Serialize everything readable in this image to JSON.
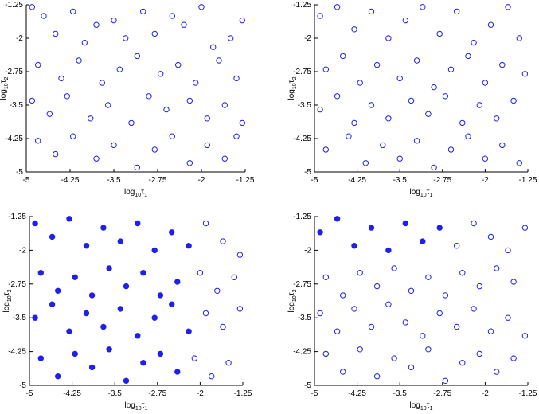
{
  "palette": {
    "marker": "#1f1ff0",
    "axis": "#000000"
  },
  "chart_data": [
    {
      "type": "scatter",
      "xlabel": "log10τ1",
      "ylabel": "log10τ2",
      "xlim": [
        -5,
        -1.25
      ],
      "ylim": [
        -5,
        -1.25
      ],
      "xticks": [
        "-5",
        "-4.25",
        "-3.5",
        "-2.75",
        "-2",
        "-1.25"
      ],
      "yticks": [
        "-5",
        "-4.25",
        "-3.5",
        "-2.75",
        "-2",
        "-1.25"
      ],
      "marker": "hollow circle",
      "points": [
        [
          -4.9,
          -1.3
        ],
        [
          -4.7,
          -1.5
        ],
        [
          -4.5,
          -1.9
        ],
        [
          -4.2,
          -1.4
        ],
        [
          -4.0,
          -2.1
        ],
        [
          -3.8,
          -1.7
        ],
        [
          -3.5,
          -1.6
        ],
        [
          -3.3,
          -2.0
        ],
        [
          -3.0,
          -1.4
        ],
        [
          -2.8,
          -1.9
        ],
        [
          -2.5,
          -1.5
        ],
        [
          -2.3,
          -1.7
        ],
        [
          -2.0,
          -1.3
        ],
        [
          -1.8,
          -2.2
        ],
        [
          -1.5,
          -2.0
        ],
        [
          -1.3,
          -1.6
        ],
        [
          -4.8,
          -2.6
        ],
        [
          -4.4,
          -2.9
        ],
        [
          -4.1,
          -2.5
        ],
        [
          -3.7,
          -3.0
        ],
        [
          -3.4,
          -2.7
        ],
        [
          -3.1,
          -2.4
        ],
        [
          -2.7,
          -2.8
        ],
        [
          -2.4,
          -2.6
        ],
        [
          -2.1,
          -3.0
        ],
        [
          -1.7,
          -2.5
        ],
        [
          -1.4,
          -2.9
        ],
        [
          -4.9,
          -3.4
        ],
        [
          -4.6,
          -3.7
        ],
        [
          -4.3,
          -3.3
        ],
        [
          -3.9,
          -3.8
        ],
        [
          -3.6,
          -3.5
        ],
        [
          -3.2,
          -3.9
        ],
        [
          -2.9,
          -3.3
        ],
        [
          -2.6,
          -3.6
        ],
        [
          -2.2,
          -3.4
        ],
        [
          -1.9,
          -3.8
        ],
        [
          -1.6,
          -3.5
        ],
        [
          -1.3,
          -3.9
        ],
        [
          -4.8,
          -4.3
        ],
        [
          -4.5,
          -4.6
        ],
        [
          -4.2,
          -4.2
        ],
        [
          -3.8,
          -4.7
        ],
        [
          -3.5,
          -4.4
        ],
        [
          -3.1,
          -4.9
        ],
        [
          -2.8,
          -4.5
        ],
        [
          -2.5,
          -4.2
        ],
        [
          -2.2,
          -4.8
        ],
        [
          -1.9,
          -4.4
        ],
        [
          -1.6,
          -4.7
        ],
        [
          -1.4,
          -4.2
        ]
      ]
    },
    {
      "type": "scatter",
      "xlabel": "log10τ1",
      "ylabel": "log10τ2",
      "xlim": [
        -5,
        -1.25
      ],
      "ylim": [
        -5,
        -1.25
      ],
      "xticks": [
        "-5",
        "-4.25",
        "-3.5",
        "-2.75",
        "-2",
        "-1.25"
      ],
      "yticks": [
        "-5",
        "-4.25",
        "-3.5",
        "-2.75",
        "-2",
        "-1.25"
      ],
      "marker": "hollow circle",
      "points": [
        [
          -4.9,
          -1.5
        ],
        [
          -4.6,
          -1.3
        ],
        [
          -4.3,
          -1.8
        ],
        [
          -4.0,
          -1.4
        ],
        [
          -3.7,
          -2.0
        ],
        [
          -3.4,
          -1.6
        ],
        [
          -3.1,
          -1.3
        ],
        [
          -2.8,
          -1.9
        ],
        [
          -2.5,
          -1.4
        ],
        [
          -2.2,
          -2.1
        ],
        [
          -1.9,
          -1.7
        ],
        [
          -1.6,
          -1.3
        ],
        [
          -1.4,
          -2.0
        ],
        [
          -4.8,
          -2.7
        ],
        [
          -4.5,
          -2.4
        ],
        [
          -4.2,
          -3.0
        ],
        [
          -3.9,
          -2.6
        ],
        [
          -3.5,
          -2.9
        ],
        [
          -3.2,
          -2.5
        ],
        [
          -2.9,
          -3.1
        ],
        [
          -2.6,
          -2.7
        ],
        [
          -2.3,
          -2.4
        ],
        [
          -2.0,
          -3.0
        ],
        [
          -1.7,
          -2.6
        ],
        [
          -1.3,
          -2.8
        ],
        [
          -4.9,
          -3.6
        ],
        [
          -4.6,
          -3.3
        ],
        [
          -4.3,
          -3.9
        ],
        [
          -4.0,
          -3.5
        ],
        [
          -3.7,
          -3.8
        ],
        [
          -3.3,
          -3.4
        ],
        [
          -3.0,
          -3.7
        ],
        [
          -2.7,
          -3.3
        ],
        [
          -2.4,
          -3.9
        ],
        [
          -2.1,
          -3.5
        ],
        [
          -1.8,
          -3.8
        ],
        [
          -1.5,
          -3.4
        ],
        [
          -4.8,
          -4.5
        ],
        [
          -4.4,
          -4.2
        ],
        [
          -4.1,
          -4.8
        ],
        [
          -3.8,
          -4.4
        ],
        [
          -3.5,
          -4.7
        ],
        [
          -3.2,
          -4.3
        ],
        [
          -2.9,
          -4.9
        ],
        [
          -2.6,
          -4.5
        ],
        [
          -2.3,
          -4.2
        ],
        [
          -2.0,
          -4.7
        ],
        [
          -1.7,
          -4.4
        ],
        [
          -1.4,
          -4.8
        ]
      ]
    },
    {
      "type": "scatter",
      "xlabel": "log10τ1",
      "ylabel": "log10τ2",
      "xlim": [
        -5,
        -1.25
      ],
      "ylim": [
        -5,
        -1.25
      ],
      "xticks": [
        "-5",
        "-4.25",
        "-3.5",
        "-2.75",
        "-2",
        "-1.25"
      ],
      "yticks": [
        "-5",
        "-4.25",
        "-3.5",
        "-2.75",
        "-2",
        "-1.25"
      ],
      "marker": "filled circle for x below about -2.1, hollow circle elsewhere",
      "points": [
        [
          -4.9,
          -1.4
        ],
        [
          -4.6,
          -1.7
        ],
        [
          -4.3,
          -1.3
        ],
        [
          -4.0,
          -1.9
        ],
        [
          -3.7,
          -1.5
        ],
        [
          -3.4,
          -1.8
        ],
        [
          -3.1,
          -1.4
        ],
        [
          -2.8,
          -2.0
        ],
        [
          -2.5,
          -1.6
        ],
        [
          -2.2,
          -1.9
        ],
        [
          -1.9,
          -1.4
        ],
        [
          -1.6,
          -1.8
        ],
        [
          -1.3,
          -2.1
        ],
        [
          -4.8,
          -2.5
        ],
        [
          -4.5,
          -2.9
        ],
        [
          -4.2,
          -2.6
        ],
        [
          -3.9,
          -3.0
        ],
        [
          -3.6,
          -2.4
        ],
        [
          -3.3,
          -2.8
        ],
        [
          -3.0,
          -2.5
        ],
        [
          -2.7,
          -3.0
        ],
        [
          -2.4,
          -2.7
        ],
        [
          -2.0,
          -2.5
        ],
        [
          -1.7,
          -2.9
        ],
        [
          -1.4,
          -2.6
        ],
        [
          -4.9,
          -3.5
        ],
        [
          -4.6,
          -3.2
        ],
        [
          -4.3,
          -3.8
        ],
        [
          -4.0,
          -3.4
        ],
        [
          -3.7,
          -3.7
        ],
        [
          -3.4,
          -3.3
        ],
        [
          -3.1,
          -3.9
        ],
        [
          -2.8,
          -3.5
        ],
        [
          -2.5,
          -3.2
        ],
        [
          -2.2,
          -3.8
        ],
        [
          -1.9,
          -3.4
        ],
        [
          -1.6,
          -3.7
        ],
        [
          -1.3,
          -3.3
        ],
        [
          -4.8,
          -4.4
        ],
        [
          -4.5,
          -4.8
        ],
        [
          -4.2,
          -4.3
        ],
        [
          -3.9,
          -4.6
        ],
        [
          -3.6,
          -4.2
        ],
        [
          -3.3,
          -4.9
        ],
        [
          -3.0,
          -4.5
        ],
        [
          -2.7,
          -4.3
        ],
        [
          -2.4,
          -4.7
        ],
        [
          -2.1,
          -4.4
        ],
        [
          -1.8,
          -4.8
        ],
        [
          -1.5,
          -4.5
        ]
      ]
    },
    {
      "type": "scatter",
      "xlabel": "log10τ1",
      "ylabel": "log10τ2",
      "xlim": [
        -5,
        -1.25
      ],
      "ylim": [
        -5,
        -1.25
      ],
      "xticks": [
        "-5",
        "-4.25",
        "-3.5",
        "-2.75",
        "-2",
        "-1.25"
      ],
      "yticks": [
        "-5",
        "-4.25",
        "-3.5",
        "-2.75",
        "-2",
        "-1.25"
      ],
      "marker": "filled circle for x below about -2.6 and y above about -2.1, hollow circle elsewhere",
      "points": [
        [
          -4.9,
          -1.6
        ],
        [
          -4.6,
          -1.3
        ],
        [
          -4.3,
          -1.9
        ],
        [
          -4.0,
          -1.5
        ],
        [
          -3.7,
          -2.0
        ],
        [
          -3.4,
          -1.4
        ],
        [
          -3.1,
          -1.8
        ],
        [
          -2.8,
          -1.5
        ],
        [
          -2.5,
          -1.9
        ],
        [
          -2.2,
          -1.4
        ],
        [
          -1.9,
          -1.7
        ],
        [
          -1.6,
          -2.0
        ],
        [
          -1.3,
          -1.5
        ],
        [
          -4.8,
          -2.6
        ],
        [
          -4.5,
          -3.0
        ],
        [
          -4.2,
          -2.5
        ],
        [
          -3.9,
          -2.8
        ],
        [
          -3.6,
          -2.4
        ],
        [
          -3.3,
          -2.9
        ],
        [
          -3.0,
          -2.6
        ],
        [
          -2.7,
          -3.0
        ],
        [
          -2.4,
          -2.5
        ],
        [
          -2.1,
          -2.8
        ],
        [
          -1.8,
          -2.4
        ],
        [
          -1.5,
          -2.7
        ],
        [
          -4.9,
          -3.4
        ],
        [
          -4.6,
          -3.8
        ],
        [
          -4.3,
          -3.3
        ],
        [
          -4.0,
          -3.7
        ],
        [
          -3.7,
          -3.2
        ],
        [
          -3.4,
          -3.6
        ],
        [
          -3.1,
          -3.9
        ],
        [
          -2.8,
          -3.4
        ],
        [
          -2.5,
          -3.7
        ],
        [
          -2.2,
          -3.3
        ],
        [
          -1.9,
          -3.8
        ],
        [
          -1.6,
          -3.5
        ],
        [
          -1.3,
          -3.9
        ],
        [
          -4.8,
          -4.3
        ],
        [
          -4.5,
          -4.7
        ],
        [
          -4.2,
          -4.2
        ],
        [
          -3.9,
          -4.8
        ],
        [
          -3.6,
          -4.4
        ],
        [
          -3.3,
          -4.6
        ],
        [
          -3.0,
          -4.2
        ],
        [
          -2.7,
          -4.9
        ],
        [
          -2.4,
          -4.5
        ],
        [
          -2.1,
          -4.3
        ],
        [
          -1.8,
          -4.7
        ],
        [
          -1.5,
          -4.4
        ]
      ]
    }
  ]
}
